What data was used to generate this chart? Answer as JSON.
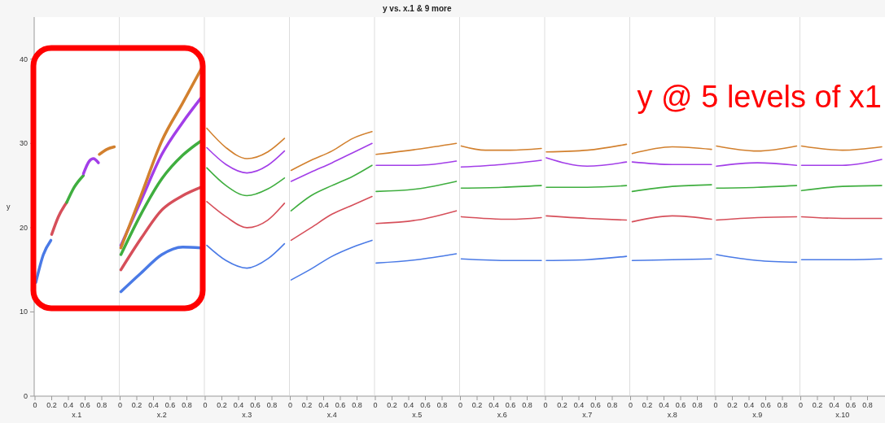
{
  "chart_data": [
    {
      "type": "line",
      "ylabel": "y",
      "xlabel": "x.1",
      "xlim": [
        0,
        1
      ],
      "xticks": [
        0,
        0.2,
        0.4,
        0.6,
        0.8
      ],
      "ylim": [
        0,
        45
      ],
      "yticks": [
        0,
        10,
        20,
        30,
        40
      ],
      "series": [
        {
          "color": "#4a7ae6",
          "x": [
            0.01,
            0.1,
            0.19
          ],
          "values": [
            13.5,
            16.8,
            18.5
          ]
        },
        {
          "color": "#d64f5a",
          "x": [
            0.2,
            0.28,
            0.38
          ],
          "values": [
            19.2,
            21.3,
            23.0
          ]
        },
        {
          "color": "#3fae3f",
          "x": [
            0.38,
            0.47,
            0.58
          ],
          "values": [
            23.0,
            24.8,
            26.2
          ]
        },
        {
          "color": "#a23ee8",
          "x": [
            0.58,
            0.65,
            0.7,
            0.76
          ],
          "values": [
            26.4,
            27.9,
            28.2,
            27.7
          ]
        },
        {
          "color": "#d2802e",
          "x": [
            0.77,
            0.86,
            0.95
          ],
          "values": [
            28.7,
            29.3,
            29.6
          ]
        }
      ]
    },
    {
      "type": "line",
      "xlabel": "x.2",
      "xlim": [
        0,
        1
      ],
      "xticks": [
        0,
        0.2,
        0.4,
        0.6,
        0.8
      ],
      "ylim": [
        0,
        45
      ],
      "tick_labels": "x",
      "series": [
        {
          "color": "#4a7ae6",
          "x": [
            0.01,
            0.25,
            0.5,
            0.75,
            0.97
          ],
          "values": [
            12.4,
            14.6,
            16.8,
            17.7,
            17.6
          ]
        },
        {
          "color": "#d64f5a",
          "x": [
            0.01,
            0.25,
            0.5,
            0.75,
            0.97
          ],
          "values": [
            15.0,
            18.7,
            22.1,
            23.8,
            24.8
          ]
        },
        {
          "color": "#3fae3f",
          "x": [
            0.01,
            0.25,
            0.5,
            0.75,
            0.97
          ],
          "values": [
            16.8,
            21.6,
            25.8,
            28.6,
            30.3
          ]
        },
        {
          "color": "#a23ee8",
          "x": [
            0.01,
            0.25,
            0.5,
            0.75,
            0.97
          ],
          "values": [
            17.9,
            23.2,
            28.7,
            32.5,
            35.4
          ]
        },
        {
          "color": "#d2802e",
          "x": [
            0.01,
            0.25,
            0.5,
            0.75,
            0.97
          ],
          "values": [
            17.6,
            23.8,
            30.3,
            34.8,
            38.8
          ]
        }
      ]
    },
    {
      "type": "line",
      "xlabel": "x.3",
      "xlim": [
        0,
        1
      ],
      "xticks": [
        0,
        0.2,
        0.4,
        0.6,
        0.8
      ],
      "ylim": [
        0,
        45
      ],
      "tick_labels": "x",
      "series": [
        {
          "color": "#4a7ae6",
          "x": [
            0.02,
            0.25,
            0.5,
            0.75,
            0.95
          ],
          "values": [
            17.9,
            16.1,
            15.2,
            16.3,
            18.1
          ]
        },
        {
          "color": "#d64f5a",
          "x": [
            0.02,
            0.25,
            0.5,
            0.75,
            0.95
          ],
          "values": [
            23.1,
            21.3,
            20.0,
            20.9,
            22.9
          ]
        },
        {
          "color": "#3fae3f",
          "x": [
            0.02,
            0.25,
            0.5,
            0.75,
            0.95
          ],
          "values": [
            27.1,
            25.0,
            23.8,
            24.6,
            25.9
          ]
        },
        {
          "color": "#a23ee8",
          "x": [
            0.02,
            0.25,
            0.5,
            0.75,
            0.95
          ],
          "values": [
            29.5,
            27.5,
            26.5,
            27.4,
            29.1
          ]
        },
        {
          "color": "#d2802e",
          "x": [
            0.02,
            0.25,
            0.5,
            0.75,
            0.95
          ],
          "values": [
            31.8,
            29.5,
            28.2,
            29.0,
            30.6
          ]
        }
      ]
    },
    {
      "type": "line",
      "xlabel": "x.4",
      "xlim": [
        0,
        1
      ],
      "xticks": [
        0,
        0.2,
        0.4,
        0.6,
        0.8
      ],
      "ylim": [
        0,
        45
      ],
      "tick_labels": "x",
      "series": [
        {
          "color": "#4a7ae6",
          "x": [
            0.01,
            0.25,
            0.5,
            0.75,
            0.98
          ],
          "values": [
            13.8,
            15.1,
            16.6,
            17.7,
            18.5
          ]
        },
        {
          "color": "#d64f5a",
          "x": [
            0.01,
            0.25,
            0.5,
            0.75,
            0.98
          ],
          "values": [
            18.5,
            20.0,
            21.6,
            22.7,
            23.7
          ]
        },
        {
          "color": "#3fae3f",
          "x": [
            0.01,
            0.25,
            0.5,
            0.75,
            0.98
          ],
          "values": [
            22.0,
            23.8,
            25.0,
            26.1,
            27.4
          ]
        },
        {
          "color": "#a23ee8",
          "x": [
            0.01,
            0.25,
            0.5,
            0.75,
            0.98
          ],
          "values": [
            25.5,
            26.6,
            27.7,
            28.9,
            30.0
          ]
        },
        {
          "color": "#d2802e",
          "x": [
            0.01,
            0.25,
            0.5,
            0.75,
            0.98
          ],
          "values": [
            26.8,
            28.0,
            29.1,
            30.6,
            31.4
          ]
        }
      ]
    },
    {
      "type": "line",
      "title": "y vs. x.1 & 9 more",
      "xlabel": "x.5",
      "xlim": [
        0,
        1
      ],
      "xticks": [
        0,
        0.2,
        0.4,
        0.6,
        0.8
      ],
      "ylim": [
        0,
        45
      ],
      "tick_labels": "x",
      "series": [
        {
          "color": "#4a7ae6",
          "x": [
            0.01,
            0.5,
            0.97
          ],
          "values": [
            15.8,
            16.2,
            16.9
          ]
        },
        {
          "color": "#d64f5a",
          "x": [
            0.01,
            0.5,
            0.97
          ],
          "values": [
            20.5,
            20.9,
            22.0
          ]
        },
        {
          "color": "#3fae3f",
          "x": [
            0.01,
            0.5,
            0.97
          ],
          "values": [
            24.3,
            24.6,
            25.5
          ]
        },
        {
          "color": "#a23ee8",
          "x": [
            0.01,
            0.5,
            0.97
          ],
          "values": [
            27.4,
            27.4,
            27.9
          ]
        },
        {
          "color": "#d2802e",
          "x": [
            0.01,
            0.5,
            0.97
          ],
          "values": [
            28.7,
            29.3,
            30.0
          ]
        }
      ]
    },
    {
      "type": "line",
      "xlabel": "x.6",
      "xlim": [
        0,
        1
      ],
      "xticks": [
        0,
        0.2,
        0.4,
        0.6,
        0.8
      ],
      "ylim": [
        0,
        45
      ],
      "tick_labels": "x",
      "series": [
        {
          "color": "#4a7ae6",
          "x": [
            0.01,
            0.6,
            0.97
          ],
          "values": [
            16.3,
            16.1,
            16.1
          ]
        },
        {
          "color": "#d64f5a",
          "x": [
            0.01,
            0.6,
            0.97
          ],
          "values": [
            21.3,
            21.0,
            21.2
          ]
        },
        {
          "color": "#3fae3f",
          "x": [
            0.01,
            0.5,
            0.97
          ],
          "values": [
            24.7,
            24.8,
            25.0
          ]
        },
        {
          "color": "#a23ee8",
          "x": [
            0.01,
            0.5,
            0.97
          ],
          "values": [
            27.2,
            27.5,
            28.0
          ]
        },
        {
          "color": "#d2802e",
          "x": [
            0.01,
            0.3,
            0.6,
            0.97
          ],
          "values": [
            29.7,
            29.2,
            29.2,
            29.4
          ]
        }
      ]
    },
    {
      "type": "line",
      "xlabel": "x.7",
      "xlim": [
        0,
        1
      ],
      "xticks": [
        0,
        0.2,
        0.4,
        0.6,
        0.8
      ],
      "ylim": [
        0,
        45
      ],
      "tick_labels": "x",
      "series": [
        {
          "color": "#4a7ae6",
          "x": [
            0.01,
            0.5,
            0.97
          ],
          "values": [
            16.1,
            16.2,
            16.6
          ]
        },
        {
          "color": "#d64f5a",
          "x": [
            0.01,
            0.5,
            0.97
          ],
          "values": [
            21.4,
            21.1,
            20.9
          ]
        },
        {
          "color": "#3fae3f",
          "x": [
            0.01,
            0.5,
            0.97
          ],
          "values": [
            24.8,
            24.8,
            25.0
          ]
        },
        {
          "color": "#a23ee8",
          "x": [
            0.01,
            0.5,
            0.97
          ],
          "values": [
            28.3,
            27.3,
            27.8
          ]
        },
        {
          "color": "#d2802e",
          "x": [
            0.01,
            0.5,
            0.97
          ],
          "values": [
            29.0,
            29.2,
            29.9
          ]
        }
      ]
    },
    {
      "type": "line",
      "xlabel": "x.8",
      "xlim": [
        0,
        1
      ],
      "xticks": [
        0,
        0.2,
        0.4,
        0.6,
        0.8
      ],
      "ylim": [
        0,
        45
      ],
      "tick_labels": "x",
      "series": [
        {
          "color": "#4a7ae6",
          "x": [
            0.02,
            0.5,
            0.97
          ],
          "values": [
            16.1,
            16.2,
            16.3
          ]
        },
        {
          "color": "#d64f5a",
          "x": [
            0.02,
            0.5,
            0.97
          ],
          "values": [
            20.7,
            21.4,
            21.0
          ]
        },
        {
          "color": "#3fae3f",
          "x": [
            0.02,
            0.5,
            0.97
          ],
          "values": [
            24.3,
            24.9,
            25.1
          ]
        },
        {
          "color": "#a23ee8",
          "x": [
            0.02,
            0.5,
            0.97
          ],
          "values": [
            27.8,
            27.5,
            27.5
          ]
        },
        {
          "color": "#d2802e",
          "x": [
            0.02,
            0.5,
            0.97
          ],
          "values": [
            28.8,
            29.6,
            29.3
          ]
        }
      ]
    },
    {
      "type": "line",
      "xlabel": "x.9",
      "xlim": [
        0,
        1
      ],
      "xticks": [
        0,
        0.2,
        0.4,
        0.6,
        0.8
      ],
      "ylim": [
        0,
        45
      ],
      "tick_labels": "x",
      "series": [
        {
          "color": "#4a7ae6",
          "x": [
            0.01,
            0.5,
            0.97
          ],
          "values": [
            16.8,
            16.1,
            15.9
          ]
        },
        {
          "color": "#d64f5a",
          "x": [
            0.01,
            0.5,
            0.97
          ],
          "values": [
            20.9,
            21.2,
            21.3
          ]
        },
        {
          "color": "#3fae3f",
          "x": [
            0.01,
            0.5,
            0.97
          ],
          "values": [
            24.7,
            24.8,
            25.0
          ]
        },
        {
          "color": "#a23ee8",
          "x": [
            0.01,
            0.5,
            0.97
          ],
          "values": [
            27.3,
            27.7,
            27.4
          ]
        },
        {
          "color": "#d2802e",
          "x": [
            0.01,
            0.5,
            0.97
          ],
          "values": [
            29.7,
            29.1,
            29.7
          ]
        }
      ]
    },
    {
      "type": "line",
      "xlabel": "x.10",
      "xlim": [
        0,
        1
      ],
      "xticks": [
        0,
        0.2,
        0.4,
        0.6,
        0.8
      ],
      "ylim": [
        0,
        45
      ],
      "tick_labels": "x",
      "annotations": [
        "y @ 5 levels of x1"
      ],
      "series": [
        {
          "color": "#4a7ae6",
          "x": [
            0.01,
            0.5,
            0.97
          ],
          "values": [
            16.2,
            16.2,
            16.3
          ]
        },
        {
          "color": "#d64f5a",
          "x": [
            0.01,
            0.5,
            0.97
          ],
          "values": [
            21.3,
            21.1,
            21.1
          ]
        },
        {
          "color": "#3fae3f",
          "x": [
            0.01,
            0.5,
            0.97
          ],
          "values": [
            24.4,
            24.9,
            25.0
          ]
        },
        {
          "color": "#a23ee8",
          "x": [
            0.01,
            0.5,
            0.97
          ],
          "values": [
            27.4,
            27.4,
            28.1
          ]
        },
        {
          "color": "#d2802e",
          "x": [
            0.01,
            0.5,
            0.97
          ],
          "values": [
            29.7,
            29.2,
            29.6
          ]
        }
      ]
    }
  ]
}
